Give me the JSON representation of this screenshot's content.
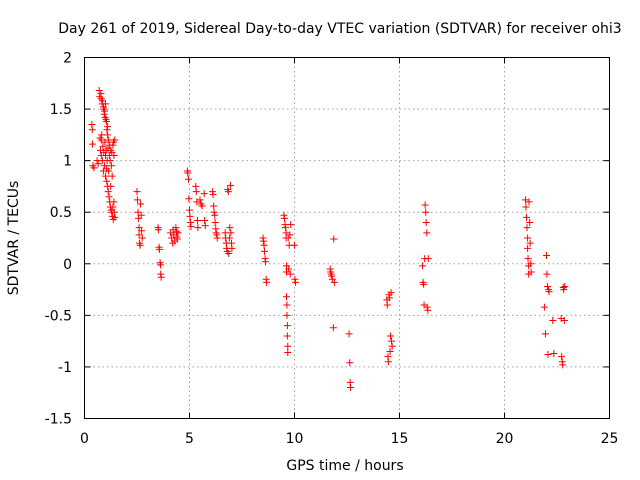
{
  "chart_data": {
    "type": "scatter",
    "title": "Day 261 of 2019, Sidereal Day-to-day VTEC variation (SDTVAR) for receiver ohi3",
    "xlabel": "GPS time / hours",
    "ylabel": "SDTVAR / TECUs",
    "xlim": [
      0,
      25
    ],
    "ylim": [
      -1.5,
      2
    ],
    "x_ticks": [
      0,
      5,
      10,
      15,
      20,
      25
    ],
    "y_ticks": [
      -1.5,
      -1,
      -0.5,
      0,
      0.5,
      1,
      1.5,
      2
    ],
    "x_tick_labels": [
      "0",
      "5",
      "10",
      "15",
      "20",
      "25"
    ],
    "y_tick_labels": [
      "-1.5",
      "-1",
      "-0.5",
      "0",
      "0.5",
      "1",
      "1.5",
      "2"
    ],
    "grid": true,
    "marker": "plus",
    "series": [
      {
        "name": "SDTVAR",
        "color": "#ff0000",
        "points": [
          [
            0.35,
            1.35
          ],
          [
            0.37,
            1.3
          ],
          [
            0.38,
            1.16
          ],
          [
            0.4,
            0.95
          ],
          [
            0.45,
            0.93
          ],
          [
            0.6,
            1.0
          ],
          [
            0.65,
            0.97
          ],
          [
            0.7,
            1.68
          ],
          [
            0.72,
            1.62
          ],
          [
            0.74,
            1.22
          ],
          [
            0.76,
            1.1
          ],
          [
            0.78,
            1.65
          ],
          [
            0.8,
            1.6
          ],
          [
            0.8,
            1.2
          ],
          [
            0.8,
            1.05
          ],
          [
            0.82,
            1.25
          ],
          [
            0.84,
            1.55
          ],
          [
            0.85,
            1.0
          ],
          [
            0.86,
            1.58
          ],
          [
            0.88,
            1.14
          ],
          [
            0.9,
            1.52
          ],
          [
            0.9,
            0.9
          ],
          [
            0.92,
            1.5
          ],
          [
            0.92,
            1.08
          ],
          [
            0.94,
            1.45
          ],
          [
            0.95,
            0.95
          ],
          [
            0.96,
            1.48
          ],
          [
            0.97,
            1.18
          ],
          [
            0.98,
            1.42
          ],
          [
            1.0,
            1.55
          ],
          [
            1.0,
            1.05
          ],
          [
            1.0,
            0.85
          ],
          [
            1.02,
            1.4
          ],
          [
            1.03,
            1.1
          ],
          [
            1.05,
            1.38
          ],
          [
            1.05,
            0.92
          ],
          [
            1.06,
            0.8
          ],
          [
            1.07,
            1.3
          ],
          [
            1.08,
            1.0
          ],
          [
            1.1,
            1.25
          ],
          [
            1.1,
            1.33
          ],
          [
            1.1,
            0.75
          ],
          [
            1.12,
            1.12
          ],
          [
            1.13,
            0.7
          ],
          [
            1.15,
            1.2
          ],
          [
            1.15,
            0.9
          ],
          [
            1.17,
            0.65
          ],
          [
            1.18,
            1.05
          ],
          [
            1.2,
            1.15
          ],
          [
            1.2,
            0.6
          ],
          [
            1.22,
            1.0
          ],
          [
            1.23,
            0.55
          ],
          [
            1.25,
            1.1
          ],
          [
            1.25,
            0.75
          ],
          [
            1.27,
            0.52
          ],
          [
            1.28,
            0.95
          ],
          [
            1.3,
            1.08
          ],
          [
            1.3,
            0.5
          ],
          [
            1.32,
            0.85
          ],
          [
            1.33,
            0.46
          ],
          [
            1.35,
            1.15
          ],
          [
            1.35,
            0.55
          ],
          [
            1.37,
            0.43
          ],
          [
            1.38,
            1.18
          ],
          [
            1.4,
            1.05
          ],
          [
            1.4,
            0.6
          ],
          [
            1.42,
            0.5
          ],
          [
            1.44,
            1.2
          ],
          [
            1.45,
            0.45
          ],
          [
            2.5,
            0.7
          ],
          [
            2.52,
            0.62
          ],
          [
            2.55,
            0.5
          ],
          [
            2.57,
            0.44
          ],
          [
            2.6,
            0.35
          ],
          [
            2.6,
            0.28
          ],
          [
            2.62,
            0.2
          ],
          [
            2.65,
            0.18
          ],
          [
            2.67,
            0.58
          ],
          [
            2.7,
            0.47
          ],
          [
            2.72,
            0.32
          ],
          [
            2.75,
            0.25
          ],
          [
            3.5,
            0.35
          ],
          [
            3.52,
            0.33
          ],
          [
            3.55,
            0.16
          ],
          [
            3.57,
            0.14
          ],
          [
            3.6,
            0.01
          ],
          [
            3.62,
            -0.01
          ],
          [
            3.63,
            -0.1
          ],
          [
            3.65,
            -0.13
          ],
          [
            4.1,
            0.3
          ],
          [
            4.15,
            0.25
          ],
          [
            4.2,
            0.2
          ],
          [
            4.22,
            0.33
          ],
          [
            4.25,
            0.28
          ],
          [
            4.3,
            0.22
          ],
          [
            4.35,
            0.35
          ],
          [
            4.38,
            0.31
          ],
          [
            4.4,
            0.26
          ],
          [
            4.42,
            0.24
          ],
          [
            4.45,
            0.3
          ],
          [
            4.9,
            0.9
          ],
          [
            4.92,
            0.88
          ],
          [
            4.95,
            0.82
          ],
          [
            4.97,
            0.63
          ],
          [
            5.0,
            0.52
          ],
          [
            5.02,
            0.46
          ],
          [
            5.05,
            0.4
          ],
          [
            5.07,
            0.36
          ],
          [
            5.3,
            0.75
          ],
          [
            5.32,
            0.7
          ],
          [
            5.35,
            0.6
          ],
          [
            5.38,
            0.42
          ],
          [
            5.4,
            0.35
          ],
          [
            5.5,
            0.62
          ],
          [
            5.55,
            0.58
          ],
          [
            5.6,
            0.56
          ],
          [
            5.7,
            0.68
          ],
          [
            5.72,
            0.42
          ],
          [
            5.75,
            0.37
          ],
          [
            6.1,
            0.7
          ],
          [
            6.12,
            0.67
          ],
          [
            6.15,
            0.56
          ],
          [
            6.17,
            0.5
          ],
          [
            6.2,
            0.47
          ],
          [
            6.22,
            0.4
          ],
          [
            6.25,
            0.34
          ],
          [
            6.27,
            0.3
          ],
          [
            6.3,
            0.28
          ],
          [
            6.32,
            0.25
          ],
          [
            6.7,
            0.3
          ],
          [
            6.72,
            0.25
          ],
          [
            6.75,
            0.2
          ],
          [
            6.77,
            0.15
          ],
          [
            6.8,
            0.12
          ],
          [
            6.82,
            0.72
          ],
          [
            6.85,
            0.7
          ],
          [
            6.87,
            0.1
          ],
          [
            6.9,
            0.25
          ],
          [
            6.92,
            0.35
          ],
          [
            6.95,
            0.76
          ],
          [
            6.97,
            0.3
          ],
          [
            7.0,
            0.2
          ],
          [
            7.02,
            0.15
          ],
          [
            8.5,
            0.25
          ],
          [
            8.52,
            0.22
          ],
          [
            8.55,
            0.18
          ],
          [
            8.57,
            0.12
          ],
          [
            8.6,
            0.05
          ],
          [
            8.62,
            0.02
          ],
          [
            8.65,
            -0.15
          ],
          [
            8.67,
            -0.18
          ],
          [
            9.5,
            0.47
          ],
          [
            9.52,
            0.44
          ],
          [
            9.55,
            0.38
          ],
          [
            9.57,
            0.35
          ],
          [
            9.6,
            0.3
          ],
          [
            9.6,
            0.25
          ],
          [
            9.62,
            -0.02
          ],
          [
            9.62,
            -0.08
          ],
          [
            9.62,
            -0.32
          ],
          [
            9.64,
            -0.4
          ],
          [
            9.64,
            -0.5
          ],
          [
            9.66,
            -0.6
          ],
          [
            9.66,
            -0.7
          ],
          [
            9.68,
            -0.8
          ],
          [
            9.68,
            -0.86
          ],
          [
            9.7,
            0.25
          ],
          [
            9.72,
            -0.05
          ],
          [
            9.75,
            0.18
          ],
          [
            9.78,
            0.28
          ],
          [
            9.8,
            -0.1
          ],
          [
            9.82,
            0.38
          ],
          [
            10.0,
            0.18
          ],
          [
            10.02,
            -0.15
          ],
          [
            10.05,
            -0.18
          ],
          [
            11.7,
            -0.05
          ],
          [
            11.72,
            -0.08
          ],
          [
            11.75,
            -0.1
          ],
          [
            11.77,
            -0.12
          ],
          [
            11.8,
            -0.15
          ],
          [
            11.85,
            -0.62
          ],
          [
            11.87,
            0.24
          ],
          [
            11.9,
            -0.18
          ],
          [
            12.6,
            -0.68
          ],
          [
            12.63,
            -0.96
          ],
          [
            12.65,
            -1.15
          ],
          [
            12.67,
            -1.2
          ],
          [
            14.4,
            -0.35
          ],
          [
            14.42,
            -0.4
          ],
          [
            14.45,
            -0.9
          ],
          [
            14.47,
            -0.95
          ],
          [
            14.5,
            -0.3
          ],
          [
            14.52,
            -0.33
          ],
          [
            14.55,
            -0.85
          ],
          [
            14.57,
            -0.7
          ],
          [
            14.6,
            -0.28
          ],
          [
            14.62,
            -0.75
          ],
          [
            14.65,
            -0.8
          ],
          [
            16.1,
            -0.02
          ],
          [
            16.12,
            -0.18
          ],
          [
            16.15,
            -0.2
          ],
          [
            16.17,
            -0.4
          ],
          [
            16.2,
            0.05
          ],
          [
            16.22,
            0.57
          ],
          [
            16.25,
            0.5
          ],
          [
            16.27,
            0.4
          ],
          [
            16.3,
            0.3
          ],
          [
            16.32,
            -0.42
          ],
          [
            16.35,
            -0.45
          ],
          [
            16.37,
            0.05
          ],
          [
            21.0,
            0.62
          ],
          [
            21.02,
            0.55
          ],
          [
            21.05,
            0.45
          ],
          [
            21.07,
            0.35
          ],
          [
            21.1,
            0.25
          ],
          [
            21.1,
            0.15
          ],
          [
            21.12,
            0.05
          ],
          [
            21.15,
            -0.02
          ],
          [
            21.15,
            -0.1
          ],
          [
            21.17,
            0.6
          ],
          [
            21.2,
            0.4
          ],
          [
            21.22,
            0.2
          ],
          [
            21.25,
            0.0
          ],
          [
            21.27,
            -0.08
          ],
          [
            21.9,
            -0.42
          ],
          [
            21.95,
            -0.68
          ],
          [
            22.0,
            0.08
          ],
          [
            22.02,
            -0.1
          ],
          [
            22.05,
            -0.22
          ],
          [
            22.07,
            -0.88
          ],
          [
            22.1,
            -0.25
          ],
          [
            22.12,
            -0.27
          ],
          [
            22.3,
            -0.55
          ],
          [
            22.35,
            -0.87
          ],
          [
            22.7,
            -0.53
          ],
          [
            22.72,
            -0.9
          ],
          [
            22.75,
            -0.95
          ],
          [
            22.77,
            -0.98
          ],
          [
            22.8,
            -0.23
          ],
          [
            22.82,
            -0.25
          ],
          [
            22.85,
            -0.55
          ],
          [
            22.87,
            -0.22
          ]
        ]
      }
    ]
  }
}
